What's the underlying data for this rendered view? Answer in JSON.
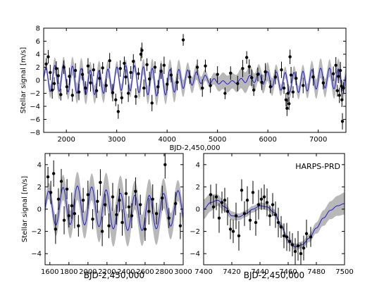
{
  "chart_data": [
    {
      "id": "top",
      "type": "line",
      "xlabel": "BJD-2,450,000",
      "ylabel": "Stellar signal [m/s]",
      "xlim": [
        1550,
        7550
      ],
      "ylim": [
        -8,
        8
      ],
      "xticks": [
        2000,
        3000,
        4000,
        5000,
        6000,
        7000
      ],
      "yticks": [
        -8,
        -6,
        -4,
        -2,
        0,
        2,
        4,
        6,
        8
      ],
      "grid": false,
      "series": [
        {
          "kind": "model",
          "color": "#1f1fd6",
          "band_color": "#b8b8b8",
          "style": "oscillating quasi-periodic GP model with ~2 m/s amplitude and confidence band"
        },
        {
          "kind": "data",
          "color": "#000000",
          "style": "points with error bars"
        }
      ],
      "points": [
        {
          "x": 1600,
          "y": 2.5
        },
        {
          "x": 1640,
          "y": 3.6
        },
        {
          "x": 1680,
          "y": 1.2
        },
        {
          "x": 1720,
          "y": -1.5
        },
        {
          "x": 1760,
          "y": -0.5
        },
        {
          "x": 1800,
          "y": 1.8
        },
        {
          "x": 1840,
          "y": 0.7
        },
        {
          "x": 1890,
          "y": -2.2
        },
        {
          "x": 1950,
          "y": 2.0
        },
        {
          "x": 2010,
          "y": -1.0
        },
        {
          "x": 2060,
          "y": 0.6
        },
        {
          "x": 2120,
          "y": -2.3
        },
        {
          "x": 2180,
          "y": 1.5
        },
        {
          "x": 2250,
          "y": -1.8
        },
        {
          "x": 2320,
          "y": 0.9
        },
        {
          "x": 2380,
          "y": -1.2
        },
        {
          "x": 2430,
          "y": 2.2
        },
        {
          "x": 2480,
          "y": -0.4
        },
        {
          "x": 2540,
          "y": 1.6
        },
        {
          "x": 2600,
          "y": -1.6
        },
        {
          "x": 2660,
          "y": 0.3
        },
        {
          "x": 2720,
          "y": 1.9
        },
        {
          "x": 2790,
          "y": -0.8
        },
        {
          "x": 2860,
          "y": 3.0
        },
        {
          "x": 2920,
          "y": -1.9
        },
        {
          "x": 2980,
          "y": -3.0
        },
        {
          "x": 3030,
          "y": -4.8
        },
        {
          "x": 3070,
          "y": 1.8
        },
        {
          "x": 3100,
          "y": -2.7
        },
        {
          "x": 3150,
          "y": 2.6
        },
        {
          "x": 3180,
          "y": 0.5
        },
        {
          "x": 3230,
          "y": -2.0
        },
        {
          "x": 3280,
          "y": 1.2
        },
        {
          "x": 3330,
          "y": 2.9
        },
        {
          "x": 3380,
          "y": -2.5
        },
        {
          "x": 3430,
          "y": 1.0
        },
        {
          "x": 3480,
          "y": 4.0
        },
        {
          "x": 3500,
          "y": 4.6
        },
        {
          "x": 3540,
          "y": -1.2
        },
        {
          "x": 3600,
          "y": 2.4
        },
        {
          "x": 3650,
          "y": 0.2
        },
        {
          "x": 3700,
          "y": -3.5
        },
        {
          "x": 3760,
          "y": 2.0
        },
        {
          "x": 3820,
          "y": -1.0
        },
        {
          "x": 3880,
          "y": 1.4
        },
        {
          "x": 3940,
          "y": 2.3
        },
        {
          "x": 4000,
          "y": -0.6
        },
        {
          "x": 4080,
          "y": 0.8
        },
        {
          "x": 4200,
          "y": -0.3
        },
        {
          "x": 4320,
          "y": 6.2
        },
        {
          "x": 4450,
          "y": 0.5
        },
        {
          "x": 4600,
          "y": 2.0
        },
        {
          "x": 4700,
          "y": -1.2
        },
        {
          "x": 4760,
          "y": 2.2
        },
        {
          "x": 4860,
          "y": -0.8
        },
        {
          "x": 5000,
          "y": 0.9
        },
        {
          "x": 5150,
          "y": -2.0
        },
        {
          "x": 5260,
          "y": 1.1
        },
        {
          "x": 5400,
          "y": -0.5
        },
        {
          "x": 5500,
          "y": 1.8
        },
        {
          "x": 5580,
          "y": 3.5
        },
        {
          "x": 5630,
          "y": 2.1
        },
        {
          "x": 5680,
          "y": 0.4
        },
        {
          "x": 5720,
          "y": -1.5
        },
        {
          "x": 5800,
          "y": 0.9
        },
        {
          "x": 5880,
          "y": -0.3
        },
        {
          "x": 5950,
          "y": 1.3
        },
        {
          "x": 6050,
          "y": -1.0
        },
        {
          "x": 6150,
          "y": 0.5
        },
        {
          "x": 6270,
          "y": 1.6
        },
        {
          "x": 6320,
          "y": -1.2
        },
        {
          "x": 6360,
          "y": -3.0
        },
        {
          "x": 6380,
          "y": -4.3
        },
        {
          "x": 6400,
          "y": -2.0
        },
        {
          "x": 6420,
          "y": -3.6
        },
        {
          "x": 6440,
          "y": 3.6
        },
        {
          "x": 6460,
          "y": 0.8
        },
        {
          "x": 6500,
          "y": -1.8
        },
        {
          "x": 6560,
          "y": 0.3
        },
        {
          "x": 6700,
          "y": -0.8
        },
        {
          "x": 6900,
          "y": 0.5
        },
        {
          "x": 7100,
          "y": -0.4
        },
        {
          "x": 7300,
          "y": 1.0
        },
        {
          "x": 7350,
          "y": 2.3
        },
        {
          "x": 7380,
          "y": -1.6
        },
        {
          "x": 7400,
          "y": 0.6
        },
        {
          "x": 7420,
          "y": -2.3
        },
        {
          "x": 7440,
          "y": 1.5
        },
        {
          "x": 7460,
          "y": -0.9
        },
        {
          "x": 7470,
          "y": -3.0
        },
        {
          "x": 7480,
          "y": -6.3
        },
        {
          "x": 7500,
          "y": -1.2
        }
      ]
    },
    {
      "id": "bottom-left",
      "type": "line",
      "xlabel": "BJD-2,450,000",
      "ylabel": "Stellar signal [m/s]",
      "xlim": [
        1550,
        3000
      ],
      "ylim": [
        -5,
        5
      ],
      "xticks": [
        1600,
        1800,
        2000,
        2200,
        2400,
        2600,
        2800,
        3000
      ],
      "yticks": [
        -4,
        -2,
        0,
        2,
        4
      ],
      "grid": false,
      "series": [
        {
          "kind": "model",
          "color": "#1f1fd6",
          "band_color": "#b8b8b8"
        },
        {
          "kind": "data",
          "color": "#000000"
        }
      ],
      "points": [
        {
          "x": 1580,
          "y": 2.9
        },
        {
          "x": 1610,
          "y": 1.5
        },
        {
          "x": 1640,
          "y": 3.2
        },
        {
          "x": 1660,
          "y": -1.8
        },
        {
          "x": 1690,
          "y": 0.9
        },
        {
          "x": 1720,
          "y": 2.5
        },
        {
          "x": 1750,
          "y": -1.0
        },
        {
          "x": 1780,
          "y": 1.8
        },
        {
          "x": 1800,
          "y": -0.6
        },
        {
          "x": 1830,
          "y": 0.3
        },
        {
          "x": 1860,
          "y": -0.4
        },
        {
          "x": 1900,
          "y": -1.5
        },
        {
          "x": 1950,
          "y": 0.8
        },
        {
          "x": 2000,
          "y": 1.3
        },
        {
          "x": 2050,
          "y": -0.9
        },
        {
          "x": 2100,
          "y": 0.7
        },
        {
          "x": 2130,
          "y": 2.4
        },
        {
          "x": 2150,
          "y": -2.0
        },
        {
          "x": 2180,
          "y": 0.4
        },
        {
          "x": 2220,
          "y": -1.5
        },
        {
          "x": 2260,
          "y": 1.1
        },
        {
          "x": 2300,
          "y": -0.5
        },
        {
          "x": 2330,
          "y": 0.8
        },
        {
          "x": 2360,
          "y": -1.2
        },
        {
          "x": 2400,
          "y": 1.4
        },
        {
          "x": 2430,
          "y": 0.2
        },
        {
          "x": 2460,
          "y": -0.6
        },
        {
          "x": 2500,
          "y": 1.6
        },
        {
          "x": 2550,
          "y": 0.4
        },
        {
          "x": 2600,
          "y": -1.8
        },
        {
          "x": 2640,
          "y": -0.2
        },
        {
          "x": 2680,
          "y": 0.9
        },
        {
          "x": 2720,
          "y": -0.4
        },
        {
          "x": 2780,
          "y": 1.0
        },
        {
          "x": 2810,
          "y": 4.0
        },
        {
          "x": 2850,
          "y": -0.8
        },
        {
          "x": 2920,
          "y": 0.5
        },
        {
          "x": 2970,
          "y": -1.5
        }
      ]
    },
    {
      "id": "bottom-right",
      "type": "line",
      "xlabel": "BJD-2,450,000",
      "ylabel": "",
      "annotation": "HARPS-PRD",
      "xlim": [
        7400,
        7500
      ],
      "ylim": [
        -5,
        5
      ],
      "xticks": [
        7400,
        7420,
        7440,
        7460,
        7480,
        7500
      ],
      "yticks": [
        -4,
        -2,
        0,
        2,
        4
      ],
      "grid": false,
      "model": {
        "x": [
          7400,
          7405,
          7410,
          7415,
          7420,
          7425,
          7430,
          7435,
          7440,
          7445,
          7450,
          7455,
          7460,
          7465,
          7470,
          7475,
          7480,
          7485,
          7490,
          7495,
          7500
        ],
        "y": [
          0.0,
          0.6,
          0.8,
          0.2,
          -0.6,
          -0.7,
          -0.4,
          0.0,
          0.3,
          0.2,
          -0.3,
          -1.5,
          -2.8,
          -3.4,
          -3.2,
          -2.6,
          -1.7,
          -0.8,
          -0.1,
          0.3,
          0.5
        ],
        "band": [
          0.9,
          0.8,
          0.5,
          0.4,
          0.4,
          0.3,
          0.3,
          0.3,
          0.3,
          0.3,
          0.3,
          0.3,
          0.3,
          0.3,
          0.3,
          0.35,
          0.5,
          0.7,
          0.8,
          0.9,
          1.0
        ]
      },
      "series": [
        {
          "kind": "model",
          "color": "#1f1fd6",
          "band_color": "#b8b8b8"
        },
        {
          "kind": "data",
          "color": "#000000"
        }
      ],
      "points": [
        {
          "x": 7405,
          "y": 1.3
        },
        {
          "x": 7407,
          "y": 0.2
        },
        {
          "x": 7409,
          "y": 1.1
        },
        {
          "x": 7411,
          "y": -0.8
        },
        {
          "x": 7413,
          "y": 0.6
        },
        {
          "x": 7415,
          "y": 0.8
        },
        {
          "x": 7417,
          "y": -0.2
        },
        {
          "x": 7419,
          "y": -1.8
        },
        {
          "x": 7421,
          "y": -2.0
        },
        {
          "x": 7423,
          "y": -0.6
        },
        {
          "x": 7425,
          "y": -2.4
        },
        {
          "x": 7427,
          "y": 1.7
        },
        {
          "x": 7429,
          "y": -0.4
        },
        {
          "x": 7431,
          "y": 0.8
        },
        {
          "x": 7433,
          "y": -1.0
        },
        {
          "x": 7435,
          "y": 1.5
        },
        {
          "x": 7437,
          "y": -1.2
        },
        {
          "x": 7439,
          "y": 0.4
        },
        {
          "x": 7441,
          "y": 0.9
        },
        {
          "x": 7443,
          "y": 1.1
        },
        {
          "x": 7445,
          "y": 0.6
        },
        {
          "x": 7447,
          "y": -0.6
        },
        {
          "x": 7449,
          "y": 0.4
        },
        {
          "x": 7451,
          "y": -0.5
        },
        {
          "x": 7453,
          "y": -1.2
        },
        {
          "x": 7455,
          "y": -1.6
        },
        {
          "x": 7457,
          "y": -2.4
        },
        {
          "x": 7459,
          "y": -2.5
        },
        {
          "x": 7461,
          "y": -2.9
        },
        {
          "x": 7463,
          "y": -3.2
        },
        {
          "x": 7465,
          "y": -3.8
        },
        {
          "x": 7467,
          "y": -3.3
        },
        {
          "x": 7469,
          "y": -4.0
        },
        {
          "x": 7471,
          "y": -3.5
        },
        {
          "x": 7473,
          "y": -2.2
        },
        {
          "x": 7476,
          "y": -2.5
        }
      ]
    }
  ]
}
